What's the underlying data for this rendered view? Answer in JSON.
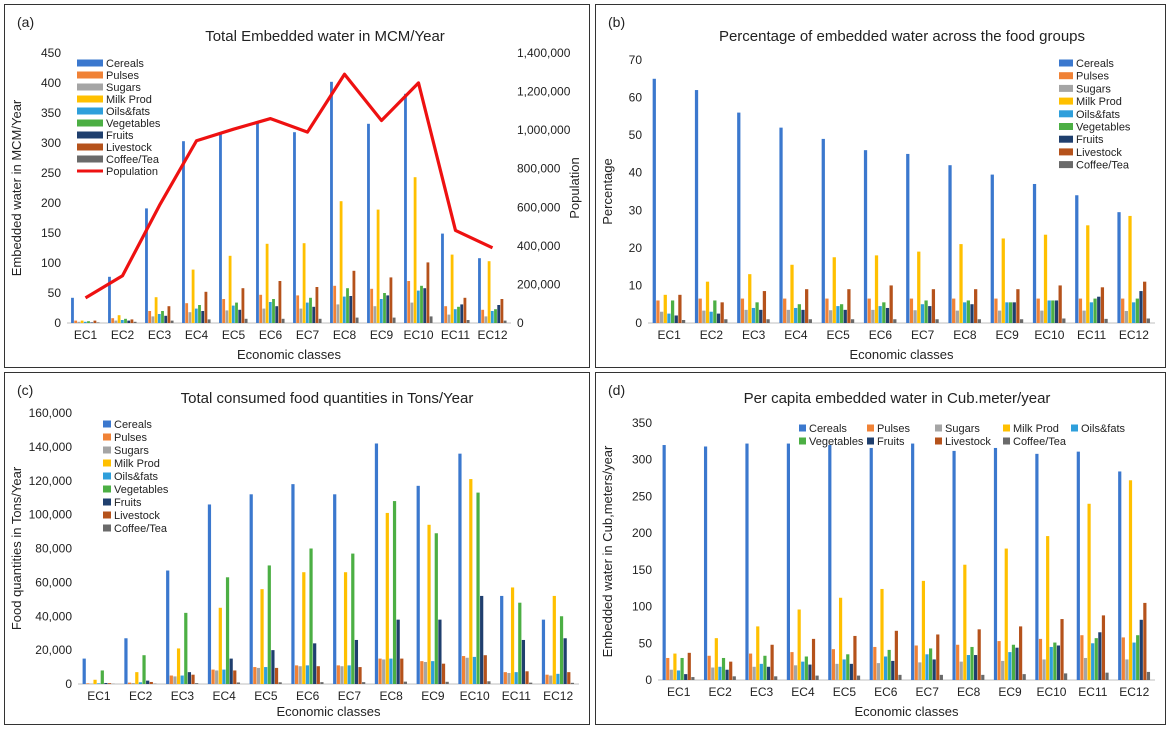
{
  "colors": {
    "Cereals": "#3B78CE",
    "Pulses": "#F08236",
    "Sugars": "#A5A5A5",
    "Milk Prod": "#FFC000",
    "Oils&fats": "#2E9FDB",
    "Vegetables": "#4CAF44",
    "Fruits": "#1F3F6E",
    "Livestock": "#B5521B",
    "Coffee/Tea": "#6A6A6A",
    "Population": "#EE1111"
  },
  "chart_data": [
    {
      "panel_label": "(a)",
      "type": "bar",
      "title": "Total Embedded water in MCM/Year",
      "xlabel": "Economic classes",
      "ylabel": "Embedded water in MCM/Year",
      "y2label": "Population",
      "ylim": [
        0,
        450
      ],
      "yticks": [
        "0",
        "50",
        "100",
        "150",
        "200",
        "250",
        "300",
        "350",
        "400",
        "450"
      ],
      "y2lim": [
        0,
        1400000
      ],
      "y2ticks": [
        "0",
        "200,000",
        "400,000",
        "600,000",
        "800,000",
        "1,000,000",
        "1,200,000",
        "1,400,000"
      ],
      "legend_position": "top-left",
      "categories": [
        "EC1",
        "EC2",
        "EC3",
        "EC4",
        "EC5",
        "EC6",
        "EC7",
        "EC8",
        "EC9",
        "EC10",
        "EC11",
        "EC12"
      ],
      "series": [
        {
          "name": "Cereals",
          "values": [
            42,
            77,
            191,
            303,
            318,
            333,
            318,
            402,
            332,
            382,
            149,
            108
          ]
        },
        {
          "name": "Pulses",
          "values": [
            4,
            8,
            20,
            33,
            40,
            47,
            46,
            62,
            57,
            70,
            28,
            22
          ]
        },
        {
          "name": "Sugars",
          "values": [
            2,
            4,
            11,
            18,
            21,
            24,
            24,
            31,
            28,
            34,
            14,
            11
          ]
        },
        {
          "name": "Milk Prod",
          "values": [
            4,
            13,
            43,
            89,
            112,
            132,
            133,
            203,
            189,
            243,
            114,
            103
          ]
        },
        {
          "name": "Oils&fats",
          "values": [
            2,
            5,
            15,
            24,
            29,
            35,
            34,
            44,
            40,
            54,
            23,
            20
          ]
        },
        {
          "name": "Vegetables",
          "values": [
            3,
            7,
            20,
            30,
            34,
            40,
            42,
            58,
            50,
            62,
            27,
            23
          ]
        },
        {
          "name": "Fruits",
          "values": [
            1,
            4,
            12,
            20,
            22,
            28,
            27,
            45,
            46,
            58,
            31,
            30
          ]
        },
        {
          "name": "Livestock",
          "values": [
            4,
            6,
            28,
            52,
            58,
            70,
            60,
            87,
            76,
            101,
            42,
            40
          ]
        },
        {
          "name": "Coffee/Tea",
          "values": [
            1,
            2,
            4,
            6,
            7,
            7,
            7,
            9,
            9,
            11,
            5,
            4
          ]
        }
      ],
      "line_series": {
        "name": "Population",
        "axis": "y2",
        "values": [
          130000,
          245000,
          610000,
          945000,
          1005000,
          1060000,
          990000,
          1290000,
          1050000,
          1245000,
          480000,
          390000
        ]
      }
    },
    {
      "panel_label": "(b)",
      "type": "bar",
      "title": "Percentage of embedded water across the food groups",
      "xlabel": "Economic classes",
      "ylabel": "Percentage",
      "ylim": [
        0,
        70
      ],
      "yticks": [
        "0",
        "10",
        "20",
        "30",
        "40",
        "50",
        "60",
        "70"
      ],
      "legend_position": "top-right",
      "categories": [
        "EC1",
        "EC2",
        "EC3",
        "EC4",
        "EC5",
        "EC6",
        "EC7",
        "EC8",
        "EC9",
        "EC10",
        "EC11",
        "EC12"
      ],
      "series": [
        {
          "name": "Cereals",
          "values": [
            65,
            62,
            56,
            52,
            49,
            46,
            45,
            42,
            39.5,
            37,
            34,
            29.5
          ]
        },
        {
          "name": "Pulses",
          "values": [
            6,
            6.5,
            6.5,
            6.5,
            6.5,
            6.5,
            6.5,
            6.5,
            6.5,
            6.5,
            6.5,
            6.5
          ]
        },
        {
          "name": "Sugars",
          "values": [
            3,
            3.3,
            3.5,
            3.5,
            3.4,
            3.5,
            3.4,
            3.3,
            3.3,
            3.3,
            3.3,
            3.2
          ]
        },
        {
          "name": "Milk Prod",
          "values": [
            7.5,
            11,
            13,
            15.5,
            17.5,
            18,
            19,
            21,
            22.5,
            23.5,
            26,
            28.5
          ]
        },
        {
          "name": "Oils&fats",
          "values": [
            2.5,
            3,
            4,
            4,
            4.5,
            4.5,
            5,
            5.5,
            5.5,
            6,
            5.5,
            5.5
          ]
        },
        {
          "name": "Vegetables",
          "values": [
            6,
            6,
            5.5,
            5,
            5,
            5.5,
            6,
            6,
            5.5,
            6,
            6.5,
            6.5
          ]
        },
        {
          "name": "Fruits",
          "values": [
            2,
            2.5,
            3.5,
            3.5,
            3.5,
            4,
            4.5,
            5,
            5.5,
            6,
            7,
            8.5
          ]
        },
        {
          "name": "Livestock",
          "values": [
            7.5,
            5.5,
            8.5,
            9,
            9,
            10,
            9,
            9,
            9,
            10,
            9.5,
            11
          ]
        },
        {
          "name": "Coffee/Tea",
          "values": [
            0.8,
            1,
            1,
            1,
            1,
            1,
            1,
            1,
            1,
            1.2,
            1.1,
            1.2
          ]
        }
      ]
    },
    {
      "panel_label": "(c)",
      "type": "bar",
      "title": "Total consumed food quantities in Tons/Year",
      "xlabel": "Economic classes",
      "ylabel": "Food quantities in Tons/Year",
      "ylim": [
        0,
        160000
      ],
      "yticks": [
        "0",
        "20,000",
        "40,000",
        "60,000",
        "80,000",
        "100,000",
        "120,000",
        "140,000",
        "160,000"
      ],
      "legend_position": "top-left",
      "categories": [
        "EC1",
        "EC2",
        "EC3",
        "EC4",
        "EC5",
        "EC6",
        "EC7",
        "EC8",
        "EC9",
        "EC10",
        "EC11",
        "EC12"
      ],
      "series": [
        {
          "name": "Cereals",
          "values": [
            15000,
            27000,
            67000,
            106000,
            112000,
            118000,
            112000,
            142000,
            117000,
            136000,
            52000,
            38000
          ]
        },
        {
          "name": "Pulses",
          "values": [
            400,
            800,
            5000,
            8500,
            10000,
            11000,
            11000,
            15000,
            13500,
            16500,
            7000,
            5500
          ]
        },
        {
          "name": "Sugars",
          "values": [
            200,
            600,
            4500,
            8000,
            9500,
            10500,
            10500,
            14500,
            13000,
            15500,
            6500,
            5000
          ]
        },
        {
          "name": "Milk Prod",
          "values": [
            2500,
            7000,
            21000,
            45000,
            56000,
            66000,
            66000,
            101000,
            94000,
            121000,
            57000,
            52000
          ]
        },
        {
          "name": "Oils&fats",
          "values": [
            400,
            1000,
            5000,
            8500,
            10000,
            11000,
            11000,
            15000,
            13500,
            16000,
            7000,
            6000
          ]
        },
        {
          "name": "Vegetables",
          "values": [
            8000,
            17000,
            42000,
            63000,
            70000,
            80000,
            77000,
            108000,
            89000,
            113000,
            48000,
            40000
          ]
        },
        {
          "name": "Fruits",
          "values": [
            600,
            2000,
            7000,
            15000,
            20000,
            24000,
            26000,
            38000,
            38000,
            52000,
            26000,
            27000
          ]
        },
        {
          "name": "Livestock",
          "values": [
            500,
            1200,
            5500,
            8000,
            9500,
            10500,
            10000,
            15000,
            12000,
            17000,
            7500,
            7000
          ]
        },
        {
          "name": "Coffee/Tea",
          "values": [
            100,
            200,
            500,
            900,
            1000,
            1100,
            1100,
            1400,
            1300,
            1600,
            800,
            700
          ]
        }
      ]
    },
    {
      "panel_label": "(d)",
      "type": "bar",
      "title": "Per capita embedded water in Cub.meter/year",
      "xlabel": "Economic classes",
      "ylabel": "Embedded water in Cub,meters/year",
      "ylim": [
        0,
        350
      ],
      "yticks": [
        "0",
        "50",
        "100",
        "150",
        "200",
        "250",
        "300",
        "350"
      ],
      "legend_position": "top",
      "categories": [
        "EC1",
        "EC2",
        "EC3",
        "EC4",
        "EC5",
        "EC6",
        "EC7",
        "EC8",
        "EC9",
        "EC10",
        "EC11",
        "EC12"
      ],
      "series": [
        {
          "name": "Cereals",
          "values": [
            320,
            318,
            322,
            322,
            320,
            316,
            322,
            312,
            316,
            308,
            311,
            284
          ]
        },
        {
          "name": "Pulses",
          "values": [
            30,
            33,
            36,
            38,
            42,
            45,
            47,
            48,
            53,
            56,
            61,
            58
          ]
        },
        {
          "name": "Sugars",
          "values": [
            14,
            17,
            18,
            20,
            22,
            23,
            24,
            25,
            26,
            28,
            30,
            28
          ]
        },
        {
          "name": "Milk Prod",
          "values": [
            36,
            57,
            73,
            96,
            112,
            124,
            135,
            157,
            179,
            196,
            240,
            272
          ]
        },
        {
          "name": "Oils&fats",
          "values": [
            13,
            18,
            22,
            25,
            28,
            32,
            35,
            34,
            38,
            45,
            50,
            51
          ]
        },
        {
          "name": "Vegetables",
          "values": [
            30,
            30,
            33,
            32,
            35,
            41,
            43,
            45,
            48,
            51,
            57,
            61
          ]
        },
        {
          "name": "Fruits",
          "values": [
            8,
            14,
            18,
            21,
            22,
            26,
            28,
            34,
            44,
            47,
            65,
            82
          ]
        },
        {
          "name": "Livestock",
          "values": [
            37,
            25,
            48,
            56,
            60,
            67,
            62,
            69,
            73,
            83,
            88,
            105
          ]
        },
        {
          "name": "Coffee/Tea",
          "values": [
            4,
            5,
            5,
            6,
            6,
            7,
            7,
            7,
            8,
            9,
            10,
            11
          ]
        }
      ]
    }
  ]
}
